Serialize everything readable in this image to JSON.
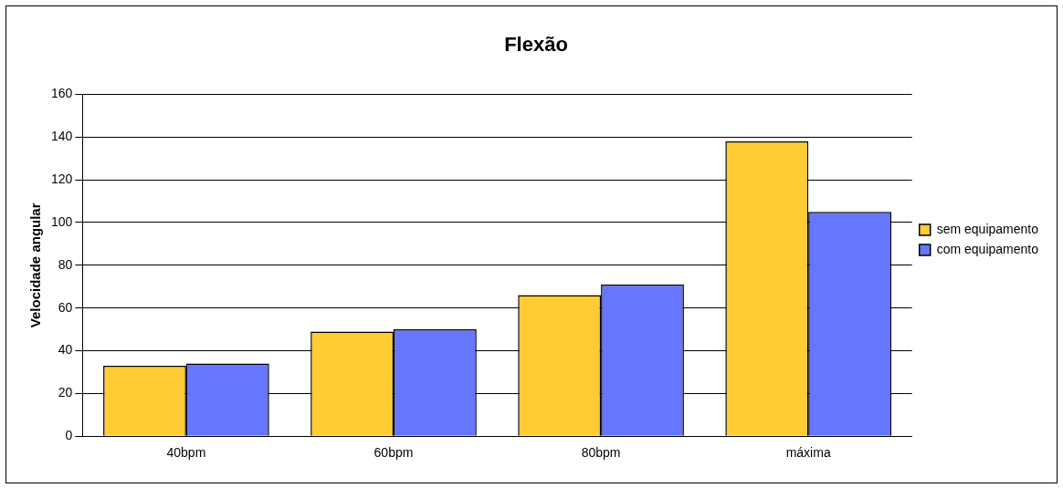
{
  "chart_data": {
    "type": "bar",
    "title": "Flexão",
    "ylabel": "Velocidade angular",
    "categories": [
      "40bpm",
      "60bpm",
      "80bpm",
      "máxima"
    ],
    "series": [
      {
        "name": "sem equipamento",
        "color": "#ffcc33",
        "values": [
          33,
          49,
          66,
          138
        ]
      },
      {
        "name": "com equipamento",
        "color": "#6677ff",
        "values": [
          34,
          50,
          71,
          105
        ]
      }
    ],
    "ylim": [
      0,
      160
    ],
    "yticks": [
      0,
      20,
      40,
      60,
      80,
      100,
      120,
      140,
      160
    ],
    "grid": "y",
    "legend": "right"
  }
}
